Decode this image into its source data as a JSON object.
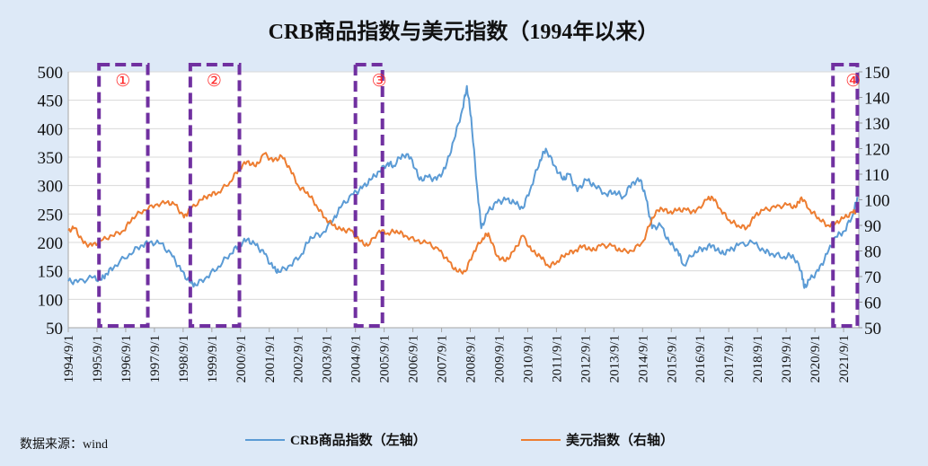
{
  "chart_data": {
    "type": "line",
    "title": "CRB商品指数与美元指数（1994年以来）",
    "source": "数据来源：wind",
    "y_left": {
      "ticks": [
        "500",
        "450",
        "400",
        "350",
        "300",
        "250",
        "200",
        "150",
        "100",
        "50"
      ],
      "lim": [
        50,
        500
      ]
    },
    "y_right": {
      "ticks": [
        "150",
        "140",
        "130",
        "120",
        "110",
        "100",
        "90",
        "80",
        "70",
        "60",
        "50"
      ],
      "lim": [
        50,
        150
      ]
    },
    "x": {
      "ticks": [
        "1994/9/1",
        "1995/9/1",
        "1996/9/1",
        "1997/9/1",
        "1998/9/1",
        "1999/9/1",
        "2000/9/1",
        "2001/9/1",
        "2002/9/1",
        "2003/9/1",
        "2004/9/1",
        "2005/9/1",
        "2006/9/1",
        "2007/9/1",
        "2008/9/1",
        "2009/9/1",
        "2010/9/1",
        "2011/9/1",
        "2012/9/1",
        "2013/9/1",
        "2014/9/1",
        "2015/9/1",
        "2016/9/1",
        "2017/9/1",
        "2018/9/1",
        "2019/9/1",
        "2020/9/1",
        "2021/9/1"
      ],
      "lim": [
        1994.67,
        2022.2
      ]
    },
    "series": [
      {
        "name": "CRB商品指数（左轴）",
        "axis": "left",
        "color": "#5b9bd5",
        "points": [
          [
            1994.67,
            132
          ],
          [
            1995.0,
            130
          ],
          [
            1995.5,
            138
          ],
          [
            1995.8,
            134
          ],
          [
            1996.0,
            145
          ],
          [
            1996.3,
            160
          ],
          [
            1996.8,
            180
          ],
          [
            1997.2,
            195
          ],
          [
            1997.5,
            200
          ],
          [
            1997.9,
            198
          ],
          [
            1998.3,
            175
          ],
          [
            1998.6,
            150
          ],
          [
            1998.9,
            130
          ],
          [
            1999.1,
            125
          ],
          [
            1999.5,
            140
          ],
          [
            1999.9,
            158
          ],
          [
            2000.3,
            180
          ],
          [
            2000.6,
            195
          ],
          [
            2000.9,
            205
          ],
          [
            2001.2,
            195
          ],
          [
            2001.5,
            180
          ],
          [
            2001.8,
            155
          ],
          [
            2002.0,
            148
          ],
          [
            2002.4,
            160
          ],
          [
            2002.8,
            180
          ],
          [
            2003.1,
            210
          ],
          [
            2003.5,
            215
          ],
          [
            2003.9,
            240
          ],
          [
            2004.2,
            265
          ],
          [
            2004.6,
            285
          ],
          [
            2004.9,
            295
          ],
          [
            2005.2,
            310
          ],
          [
            2005.5,
            325
          ],
          [
            2005.8,
            340
          ],
          [
            2006.0,
            335
          ],
          [
            2006.3,
            355
          ],
          [
            2006.6,
            350
          ],
          [
            2006.9,
            310
          ],
          [
            2007.2,
            315
          ],
          [
            2007.5,
            310
          ],
          [
            2007.8,
            330
          ],
          [
            2008.1,
            380
          ],
          [
            2008.4,
            435
          ],
          [
            2008.55,
            475
          ],
          [
            2008.7,
            420
          ],
          [
            2008.9,
            300
          ],
          [
            2009.05,
            225
          ],
          [
            2009.3,
            255
          ],
          [
            2009.6,
            270
          ],
          [
            2009.9,
            275
          ],
          [
            2010.2,
            270
          ],
          [
            2010.5,
            260
          ],
          [
            2010.8,
            300
          ],
          [
            2011.1,
            345
          ],
          [
            2011.3,
            365
          ],
          [
            2011.6,
            335
          ],
          [
            2011.9,
            310
          ],
          [
            2012.1,
            320
          ],
          [
            2012.4,
            290
          ],
          [
            2012.7,
            310
          ],
          [
            2013.0,
            300
          ],
          [
            2013.4,
            285
          ],
          [
            2013.7,
            290
          ],
          [
            2014.0,
            280
          ],
          [
            2014.3,
            305
          ],
          [
            2014.6,
            310
          ],
          [
            2014.8,
            275
          ],
          [
            2015.0,
            225
          ],
          [
            2015.3,
            230
          ],
          [
            2015.6,
            200
          ],
          [
            2015.9,
            185
          ],
          [
            2016.1,
            160
          ],
          [
            2016.5,
            185
          ],
          [
            2016.8,
            190
          ],
          [
            2017.1,
            195
          ],
          [
            2017.4,
            180
          ],
          [
            2017.7,
            185
          ],
          [
            2018.0,
            195
          ],
          [
            2018.5,
            200
          ],
          [
            2018.9,
            185
          ],
          [
            2019.2,
            180
          ],
          [
            2019.6,
            175
          ],
          [
            2019.9,
            178
          ],
          [
            2020.2,
            150
          ],
          [
            2020.3,
            120
          ],
          [
            2020.5,
            135
          ],
          [
            2020.8,
            150
          ],
          [
            2021.1,
            180
          ],
          [
            2021.4,
            210
          ],
          [
            2021.7,
            220
          ],
          [
            2022.0,
            250
          ],
          [
            2022.15,
            280
          ]
        ]
      },
      {
        "name": "美元指数（右轴）",
        "axis": "right",
        "color": "#ed7d31",
        "points": [
          [
            1994.67,
            88
          ],
          [
            1994.9,
            89
          ],
          [
            1995.2,
            83
          ],
          [
            1995.5,
            82
          ],
          [
            1995.8,
            84
          ],
          [
            1996.2,
            86
          ],
          [
            1996.6,
            88
          ],
          [
            1996.9,
            93
          ],
          [
            1997.3,
            96
          ],
          [
            1997.7,
            98
          ],
          [
            1998.1,
            99
          ],
          [
            1998.4,
            98
          ],
          [
            1998.7,
            93
          ],
          [
            1998.9,
            96
          ],
          [
            1999.3,
            100
          ],
          [
            1999.6,
            102
          ],
          [
            1999.9,
            103
          ],
          [
            2000.3,
            107
          ],
          [
            2000.6,
            112
          ],
          [
            2000.9,
            115
          ],
          [
            2001.2,
            113
          ],
          [
            2001.5,
            118
          ],
          [
            2001.8,
            115
          ],
          [
            2002.1,
            117
          ],
          [
            2002.4,
            112
          ],
          [
            2002.7,
            105
          ],
          [
            2003.0,
            103
          ],
          [
            2003.3,
            98
          ],
          [
            2003.6,
            93
          ],
          [
            2003.9,
            90
          ],
          [
            2004.2,
            88
          ],
          [
            2004.5,
            88
          ],
          [
            2004.8,
            84
          ],
          [
            2005.1,
            82
          ],
          [
            2005.5,
            88
          ],
          [
            2005.8,
            87
          ],
          [
            2006.1,
            88
          ],
          [
            2006.4,
            86
          ],
          [
            2006.8,
            84
          ],
          [
            2007.2,
            83
          ],
          [
            2007.6,
            80
          ],
          [
            2007.9,
            76
          ],
          [
            2008.2,
            72
          ],
          [
            2008.5,
            72
          ],
          [
            2008.8,
            80
          ],
          [
            2009.1,
            85
          ],
          [
            2009.3,
            87
          ],
          [
            2009.6,
            78
          ],
          [
            2009.9,
            76
          ],
          [
            2010.2,
            80
          ],
          [
            2010.5,
            86
          ],
          [
            2010.8,
            80
          ],
          [
            2011.1,
            78
          ],
          [
            2011.4,
            74
          ],
          [
            2011.7,
            76
          ],
          [
            2012.0,
            79
          ],
          [
            2012.3,
            80
          ],
          [
            2012.6,
            82
          ],
          [
            2012.9,
            80
          ],
          [
            2013.2,
            82
          ],
          [
            2013.6,
            82
          ],
          [
            2013.9,
            80
          ],
          [
            2014.3,
            80
          ],
          [
            2014.7,
            84
          ],
          [
            2015.0,
            93
          ],
          [
            2015.3,
            97
          ],
          [
            2015.6,
            95
          ],
          [
            2015.9,
            96
          ],
          [
            2016.2,
            96
          ],
          [
            2016.5,
            95
          ],
          [
            2016.9,
            100
          ],
          [
            2017.1,
            101
          ],
          [
            2017.4,
            96
          ],
          [
            2017.7,
            92
          ],
          [
            2018.0,
            90
          ],
          [
            2018.3,
            89
          ],
          [
            2018.6,
            94
          ],
          [
            2018.9,
            96
          ],
          [
            2019.3,
            97
          ],
          [
            2019.7,
            98
          ],
          [
            2020.0,
            97
          ],
          [
            2020.2,
            101
          ],
          [
            2020.5,
            96
          ],
          [
            2020.8,
            93
          ],
          [
            2021.1,
            90
          ],
          [
            2021.4,
            91
          ],
          [
            2021.7,
            93
          ],
          [
            2022.0,
            95
          ],
          [
            2022.15,
            96
          ]
        ]
      }
    ],
    "highlight_periods": [
      {
        "label": "①",
        "x_start": 1995.74,
        "x_end": 1997.44
      },
      {
        "label": "②",
        "x_start": 1998.92,
        "x_end": 2000.63
      },
      {
        "label": "③",
        "x_start": 2004.67,
        "x_end": 2005.61
      },
      {
        "label": "④",
        "x_start": 2021.3,
        "x_end": 2022.15
      }
    ],
    "legend_position": "bottom"
  },
  "colors": {
    "plot_bg": "#ffffff",
    "page_bg": "#dde9f7",
    "box": "#7030a0",
    "box_label": "#ff2a2a"
  }
}
